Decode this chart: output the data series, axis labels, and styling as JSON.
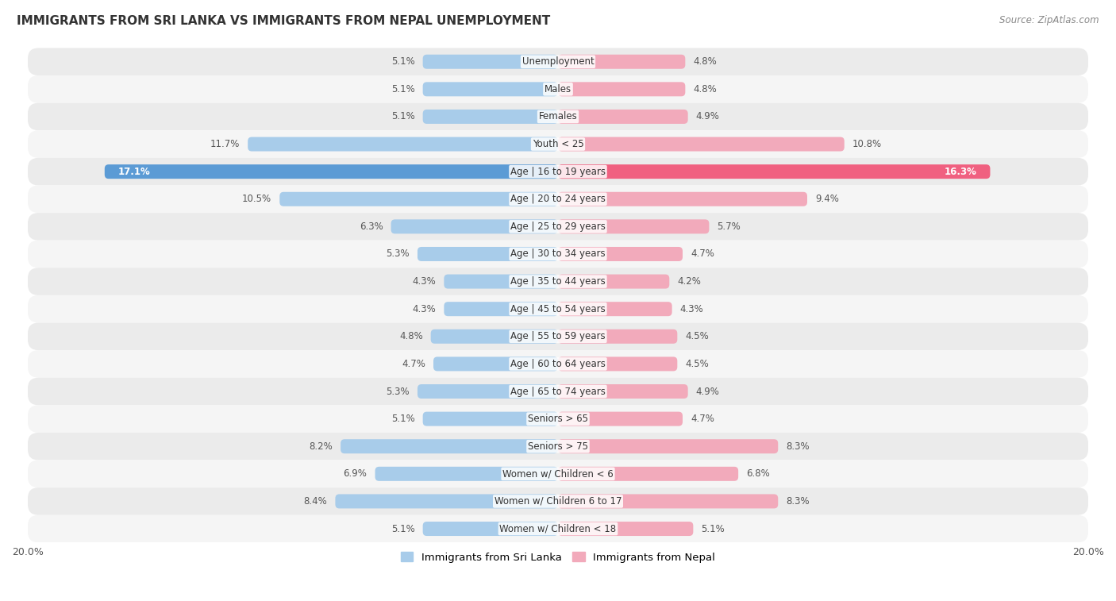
{
  "title": "IMMIGRANTS FROM SRI LANKA VS IMMIGRANTS FROM NEPAL UNEMPLOYMENT",
  "source": "Source: ZipAtlas.com",
  "categories": [
    "Unemployment",
    "Males",
    "Females",
    "Youth < 25",
    "Age | 16 to 19 years",
    "Age | 20 to 24 years",
    "Age | 25 to 29 years",
    "Age | 30 to 34 years",
    "Age | 35 to 44 years",
    "Age | 45 to 54 years",
    "Age | 55 to 59 years",
    "Age | 60 to 64 years",
    "Age | 65 to 74 years",
    "Seniors > 65",
    "Seniors > 75",
    "Women w/ Children < 6",
    "Women w/ Children 6 to 17",
    "Women w/ Children < 18"
  ],
  "sri_lanka": [
    5.1,
    5.1,
    5.1,
    11.7,
    17.1,
    10.5,
    6.3,
    5.3,
    4.3,
    4.3,
    4.8,
    4.7,
    5.3,
    5.1,
    8.2,
    6.9,
    8.4,
    5.1
  ],
  "nepal": [
    4.8,
    4.8,
    4.9,
    10.8,
    16.3,
    9.4,
    5.7,
    4.7,
    4.2,
    4.3,
    4.5,
    4.5,
    4.9,
    4.7,
    8.3,
    6.8,
    8.3,
    5.1
  ],
  "sri_lanka_color": "#A8CCEA",
  "nepal_color": "#F2AABB",
  "sri_lanka_highlight_color": "#5B9BD5",
  "nepal_highlight_color": "#F06080",
  "row_bg_odd": "#EBEBEB",
  "row_bg_even": "#F5F5F5",
  "axis_max": 20.0,
  "legend_sri_lanka": "Immigrants from Sri Lanka",
  "legend_nepal": "Immigrants from Nepal",
  "bar_height": 0.52,
  "label_color_normal": "#555555",
  "label_color_highlight": "#FFFFFF"
}
